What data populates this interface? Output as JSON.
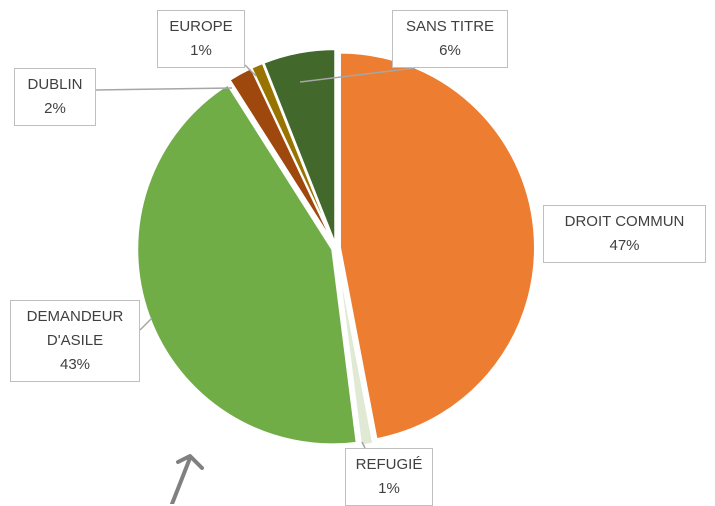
{
  "chart_data": {
    "type": "pie",
    "categories": [
      "DROIT COMMUN",
      "REFUGIÉ",
      "DEMANDEUR D'ASILE",
      "DUBLIN",
      "EUROPE",
      "SANS TITRE"
    ],
    "values": [
      47,
      1,
      43,
      2,
      1,
      6
    ],
    "value_labels": [
      "47%",
      "1%",
      "43%",
      "2%",
      "1%",
      "6%"
    ],
    "colors": [
      "#ed7d31",
      "#dfe9d3",
      "#70ad47",
      "#9e480e",
      "#997300",
      "#43682b"
    ]
  }
}
